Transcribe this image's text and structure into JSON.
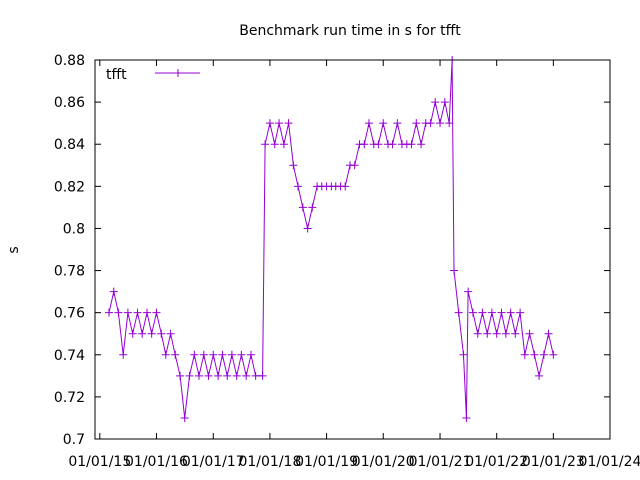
{
  "chart_data": {
    "type": "line",
    "title": "Benchmark run time in s for tfft",
    "xlabel": "",
    "ylabel": "s",
    "x_tick_labels": [
      "01/01/15",
      "01/01/16",
      "01/01/17",
      "01/01/18",
      "01/01/19",
      "01/01/20",
      "01/01/21",
      "01/01/22",
      "01/01/23",
      "01/01/24"
    ],
    "y_ticks": [
      0.7,
      0.72,
      0.74,
      0.76,
      0.78,
      0.8,
      0.82,
      0.84,
      0.86,
      0.88
    ],
    "y_tick_labels": [
      "0.7",
      "0.72",
      "0.74",
      "0.76",
      "0.78",
      "0.8",
      "0.82",
      "0.84",
      "0.86",
      "0.88"
    ],
    "ylim": [
      0.7,
      0.88
    ],
    "xlim": [
      "2014-12-01",
      "2024-01-01"
    ],
    "legend_position": "top-left",
    "grid": false,
    "color": "#9400d3",
    "series": [
      {
        "name": "tfft",
        "points": [
          [
            "2015-03-01",
            0.76
          ],
          [
            "2015-04-01",
            0.77
          ],
          [
            "2015-05-01",
            0.76
          ],
          [
            "2015-06-01",
            0.74
          ],
          [
            "2015-07-01",
            0.76
          ],
          [
            "2015-08-01",
            0.75
          ],
          [
            "2015-09-01",
            0.76
          ],
          [
            "2015-10-01",
            0.75
          ],
          [
            "2015-11-01",
            0.76
          ],
          [
            "2015-12-01",
            0.75
          ],
          [
            "2016-01-01",
            0.76
          ],
          [
            "2016-02-01",
            0.75
          ],
          [
            "2016-03-01",
            0.74
          ],
          [
            "2016-04-01",
            0.75
          ],
          [
            "2016-05-01",
            0.74
          ],
          [
            "2016-06-01",
            0.73
          ],
          [
            "2016-07-01",
            0.71
          ],
          [
            "2016-08-01",
            0.73
          ],
          [
            "2016-09-01",
            0.74
          ],
          [
            "2016-10-01",
            0.73
          ],
          [
            "2016-11-01",
            0.74
          ],
          [
            "2016-12-01",
            0.73
          ],
          [
            "2017-01-01",
            0.74
          ],
          [
            "2017-02-01",
            0.73
          ],
          [
            "2017-03-01",
            0.74
          ],
          [
            "2017-04-01",
            0.73
          ],
          [
            "2017-05-01",
            0.74
          ],
          [
            "2017-06-01",
            0.73
          ],
          [
            "2017-07-01",
            0.74
          ],
          [
            "2017-08-01",
            0.73
          ],
          [
            "2017-09-01",
            0.74
          ],
          [
            "2017-10-01",
            0.73
          ],
          [
            "2017-11-15",
            0.73
          ],
          [
            "2017-12-01",
            0.84
          ],
          [
            "2018-01-01",
            0.85
          ],
          [
            "2018-02-01",
            0.84
          ],
          [
            "2018-03-01",
            0.85
          ],
          [
            "2018-04-01",
            0.84
          ],
          [
            "2018-05-01",
            0.85
          ],
          [
            "2018-06-01",
            0.83
          ],
          [
            "2018-07-01",
            0.82
          ],
          [
            "2018-08-01",
            0.81
          ],
          [
            "2018-09-01",
            0.8
          ],
          [
            "2018-10-01",
            0.81
          ],
          [
            "2018-11-01",
            0.82
          ],
          [
            "2018-12-01",
            0.82
          ],
          [
            "2019-01-01",
            0.82
          ],
          [
            "2019-02-01",
            0.82
          ],
          [
            "2019-03-01",
            0.82
          ],
          [
            "2019-04-01",
            0.82
          ],
          [
            "2019-05-01",
            0.82
          ],
          [
            "2019-06-01",
            0.83
          ],
          [
            "2019-07-01",
            0.83
          ],
          [
            "2019-08-01",
            0.84
          ],
          [
            "2019-09-01",
            0.84
          ],
          [
            "2019-10-01",
            0.85
          ],
          [
            "2019-11-01",
            0.84
          ],
          [
            "2019-12-01",
            0.84
          ],
          [
            "2020-01-01",
            0.85
          ],
          [
            "2020-02-01",
            0.84
          ],
          [
            "2020-03-01",
            0.84
          ],
          [
            "2020-04-01",
            0.85
          ],
          [
            "2020-05-01",
            0.84
          ],
          [
            "2020-06-01",
            0.84
          ],
          [
            "2020-07-01",
            0.84
          ],
          [
            "2020-08-01",
            0.85
          ],
          [
            "2020-09-01",
            0.84
          ],
          [
            "2020-10-01",
            0.85
          ],
          [
            "2020-11-01",
            0.85
          ],
          [
            "2020-12-01",
            0.86
          ],
          [
            "2021-01-01",
            0.85
          ],
          [
            "2021-02-01",
            0.86
          ],
          [
            "2021-03-01",
            0.85
          ],
          [
            "2021-03-20",
            0.88
          ],
          [
            "2021-04-01",
            0.78
          ],
          [
            "2021-05-01",
            0.76
          ],
          [
            "2021-06-01",
            0.74
          ],
          [
            "2021-06-20",
            0.71
          ],
          [
            "2021-07-01",
            0.77
          ],
          [
            "2021-08-01",
            0.76
          ],
          [
            "2021-09-01",
            0.75
          ],
          [
            "2021-10-01",
            0.76
          ],
          [
            "2021-11-01",
            0.75
          ],
          [
            "2021-12-01",
            0.76
          ],
          [
            "2022-01-01",
            0.75
          ],
          [
            "2022-02-01",
            0.76
          ],
          [
            "2022-03-01",
            0.75
          ],
          [
            "2022-04-01",
            0.76
          ],
          [
            "2022-05-01",
            0.75
          ],
          [
            "2022-06-01",
            0.76
          ],
          [
            "2022-07-01",
            0.74
          ],
          [
            "2022-08-01",
            0.75
          ],
          [
            "2022-09-01",
            0.74
          ],
          [
            "2022-10-01",
            0.73
          ],
          [
            "2022-11-01",
            0.74
          ],
          [
            "2022-12-01",
            0.75
          ],
          [
            "2023-01-01",
            0.74
          ]
        ]
      }
    ]
  }
}
